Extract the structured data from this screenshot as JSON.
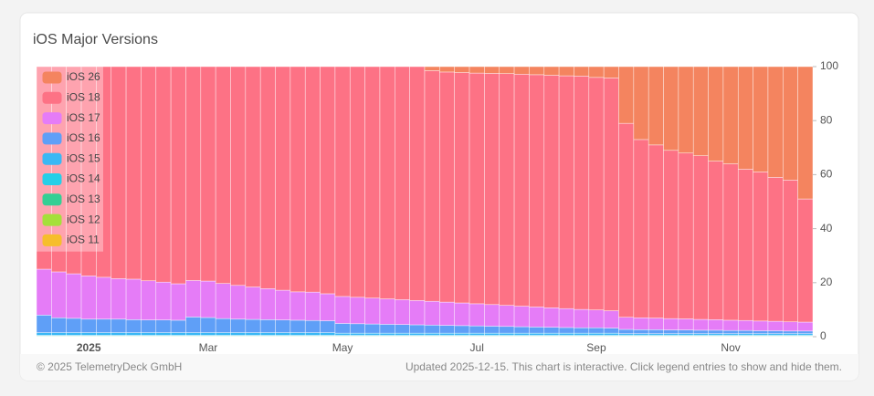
{
  "chart_data": {
    "type": "stacked_bar",
    "title": "iOS Major Versions",
    "categories": [
      null,
      null,
      null,
      "2025",
      null,
      null,
      null,
      null,
      null,
      null,
      null,
      "Mar",
      null,
      null,
      null,
      null,
      null,
      null,
      null,
      null,
      "May",
      null,
      null,
      null,
      null,
      null,
      null,
      null,
      null,
      "Jul",
      null,
      null,
      null,
      null,
      null,
      null,
      null,
      "Sep",
      null,
      null,
      null,
      null,
      null,
      null,
      null,
      null,
      "Nov",
      null,
      null,
      null,
      null,
      null
    ],
    "ylim": [
      0,
      100
    ],
    "yticks": [
      0,
      20,
      40,
      60,
      80,
      100
    ],
    "y_axis_side": "right",
    "legend": "top-left",
    "series": [
      {
        "name": "iOS 26",
        "color": "#f4845f",
        "values": [
          0,
          0,
          0,
          0,
          0,
          0,
          0,
          0,
          0,
          0,
          0,
          0,
          0,
          0,
          0,
          0,
          0,
          0,
          0,
          0,
          0,
          0,
          0,
          0,
          0,
          0,
          1.5,
          2,
          2.2,
          2.4,
          2.5,
          2.6,
          2.8,
          3,
          3.2,
          3.4,
          3.5,
          4,
          4.2,
          21,
          27,
          29,
          31,
          32,
          33,
          35,
          36,
          38,
          39,
          41,
          42,
          49
        ]
      },
      {
        "name": "iOS 18",
        "color": "#fd7285",
        "values": [
          75.0,
          76.0,
          76.7,
          77.5,
          78.0,
          78.5,
          78.7,
          79.3,
          79.8,
          80.4,
          79.2,
          79.4,
          80.3,
          81.0,
          81.6,
          82.2,
          82.8,
          83.4,
          83.5,
          84.1,
          85.1,
          85.4,
          85.7,
          86.0,
          86.3,
          86.6,
          85.4,
          85.2,
          85.3,
          85.4,
          85.6,
          85.8,
          85.9,
          86.0,
          86.1,
          86.2,
          86.4,
          86.1,
          86.2,
          71.8,
          66.0,
          64.1,
          62.3,
          61.4,
          60.6,
          58.7,
          57.9,
          56.0,
          55.2,
          53.3,
          52.5,
          45.6
        ]
      },
      {
        "name": "iOS 17",
        "color": "#e57cf7",
        "values": [
          17,
          17,
          16.5,
          16,
          15.5,
          15,
          15,
          14.5,
          14,
          13.5,
          13.5,
          13.5,
          13,
          12.5,
          12,
          11.5,
          11,
          10.5,
          10.5,
          10,
          10,
          9.8,
          9.6,
          9.4,
          9.2,
          9,
          8.8,
          8.6,
          8.4,
          8.2,
          8,
          7.8,
          7.6,
          7.4,
          7.2,
          7,
          6.8,
          6.6,
          6.4,
          4.5,
          4.4,
          4.3,
          4.2,
          4.1,
          4,
          3.9,
          3.8,
          3.7,
          3.6,
          3.5,
          3.4,
          3.3
        ]
      },
      {
        "name": "iOS 16",
        "color": "#5f9ff7",
        "values": [
          6.5,
          5.5,
          5.3,
          5.0,
          5.0,
          5.0,
          4.8,
          4.7,
          4.7,
          4.6,
          5.8,
          5.6,
          5.2,
          5.0,
          4.9,
          4.8,
          4.7,
          4.6,
          4.5,
          4.4,
          3.6,
          3.5,
          3.4,
          3.3,
          3.2,
          3.1,
          3.0,
          2.9,
          2.8,
          2.7,
          2.6,
          2.5,
          2.4,
          2.3,
          2.2,
          2.1,
          2.0,
          2.0,
          1.9,
          1.6,
          1.5,
          1.5,
          1.4,
          1.4,
          1.3,
          1.3,
          1.2,
          1.2,
          1.1,
          1.1,
          1.0,
          1.0
        ]
      },
      {
        "name": "iOS 15",
        "color": "#3ab8f4",
        "values": [
          1,
          1,
          1,
          1,
          1,
          1,
          1,
          1,
          1,
          1,
          1,
          1,
          1,
          1,
          1,
          1,
          1,
          1,
          1,
          1,
          0.8,
          0.8,
          0.8,
          0.8,
          0.8,
          0.8,
          0.8,
          0.8,
          0.8,
          0.8,
          0.8,
          0.8,
          0.8,
          0.8,
          0.8,
          0.8,
          0.8,
          0.8,
          0.8,
          0.6,
          0.6,
          0.6,
          0.6,
          0.6,
          0.6,
          0.6,
          0.6,
          0.6,
          0.6,
          0.6,
          0.6,
          0.6
        ]
      },
      {
        "name": "iOS 14",
        "color": "#25cfe8",
        "values": [
          0.2,
          0.2,
          0.2,
          0.2,
          0.2,
          0.2,
          0.2,
          0.2,
          0.2,
          0.2,
          0.2,
          0.2,
          0.2,
          0.2,
          0.2,
          0.2,
          0.2,
          0.2,
          0.2,
          0.2,
          0.2,
          0.2,
          0.2,
          0.2,
          0.2,
          0.2,
          0.2,
          0.2,
          0.2,
          0.2,
          0.2,
          0.2,
          0.2,
          0.2,
          0.2,
          0.2,
          0.2,
          0.2,
          0.2,
          0.2,
          0.2,
          0.2,
          0.2,
          0.2,
          0.2,
          0.2,
          0.2,
          0.2,
          0.2,
          0.2,
          0.2,
          0.2
        ]
      },
      {
        "name": "iOS 13",
        "color": "#34cf94",
        "values": [
          0.1,
          0.1,
          0.1,
          0.1,
          0.1,
          0.1,
          0.1,
          0.1,
          0.1,
          0.1,
          0.1,
          0.1,
          0.1,
          0.1,
          0.1,
          0.1,
          0.1,
          0.1,
          0.1,
          0.1,
          0.1,
          0.1,
          0.1,
          0.1,
          0.1,
          0.1,
          0.1,
          0.1,
          0.1,
          0.1,
          0.1,
          0.1,
          0.1,
          0.1,
          0.1,
          0.1,
          0.1,
          0.1,
          0.1,
          0.1,
          0.1,
          0.1,
          0.1,
          0.1,
          0.1,
          0.1,
          0.1,
          0.1,
          0.1,
          0.1,
          0.1,
          0.1
        ]
      },
      {
        "name": "iOS 12",
        "color": "#a5e03a",
        "values": [
          0.1,
          0.1,
          0.1,
          0.1,
          0.1,
          0.1,
          0.1,
          0.1,
          0.1,
          0.1,
          0.1,
          0.1,
          0.1,
          0.1,
          0.1,
          0.1,
          0.1,
          0.1,
          0.1,
          0.1,
          0.1,
          0.1,
          0.1,
          0.1,
          0.1,
          0.1,
          0.1,
          0.1,
          0.1,
          0.1,
          0.1,
          0.1,
          0.1,
          0.1,
          0.1,
          0.1,
          0.1,
          0.1,
          0.1,
          0.1,
          0.1,
          0.1,
          0.1,
          0.1,
          0.1,
          0.1,
          0.1,
          0.1,
          0.1,
          0.1,
          0.1,
          0.1
        ]
      },
      {
        "name": "iOS 11",
        "color": "#f6be2c",
        "values": [
          0.1,
          0.1,
          0.1,
          0.1,
          0.1,
          0.1,
          0.1,
          0.1,
          0.1,
          0.1,
          0.1,
          0.1,
          0.1,
          0.1,
          0.1,
          0.1,
          0.1,
          0.1,
          0.1,
          0.1,
          0.1,
          0.1,
          0.1,
          0.1,
          0.1,
          0.1,
          0.1,
          0.1,
          0.1,
          0.1,
          0.1,
          0.1,
          0.1,
          0.1,
          0.1,
          0.1,
          0.1,
          0.1,
          0.1,
          0.1,
          0.1,
          0.1,
          0.1,
          0.1,
          0.1,
          0.1,
          0.1,
          0.1,
          0.1,
          0.1,
          0.1,
          0.1
        ]
      }
    ]
  },
  "footer": {
    "copyright": "© 2025 TelemetryDeck GmbH",
    "note": "Updated 2025-12-15. This chart is interactive. Click legend entries to show and hide them."
  }
}
